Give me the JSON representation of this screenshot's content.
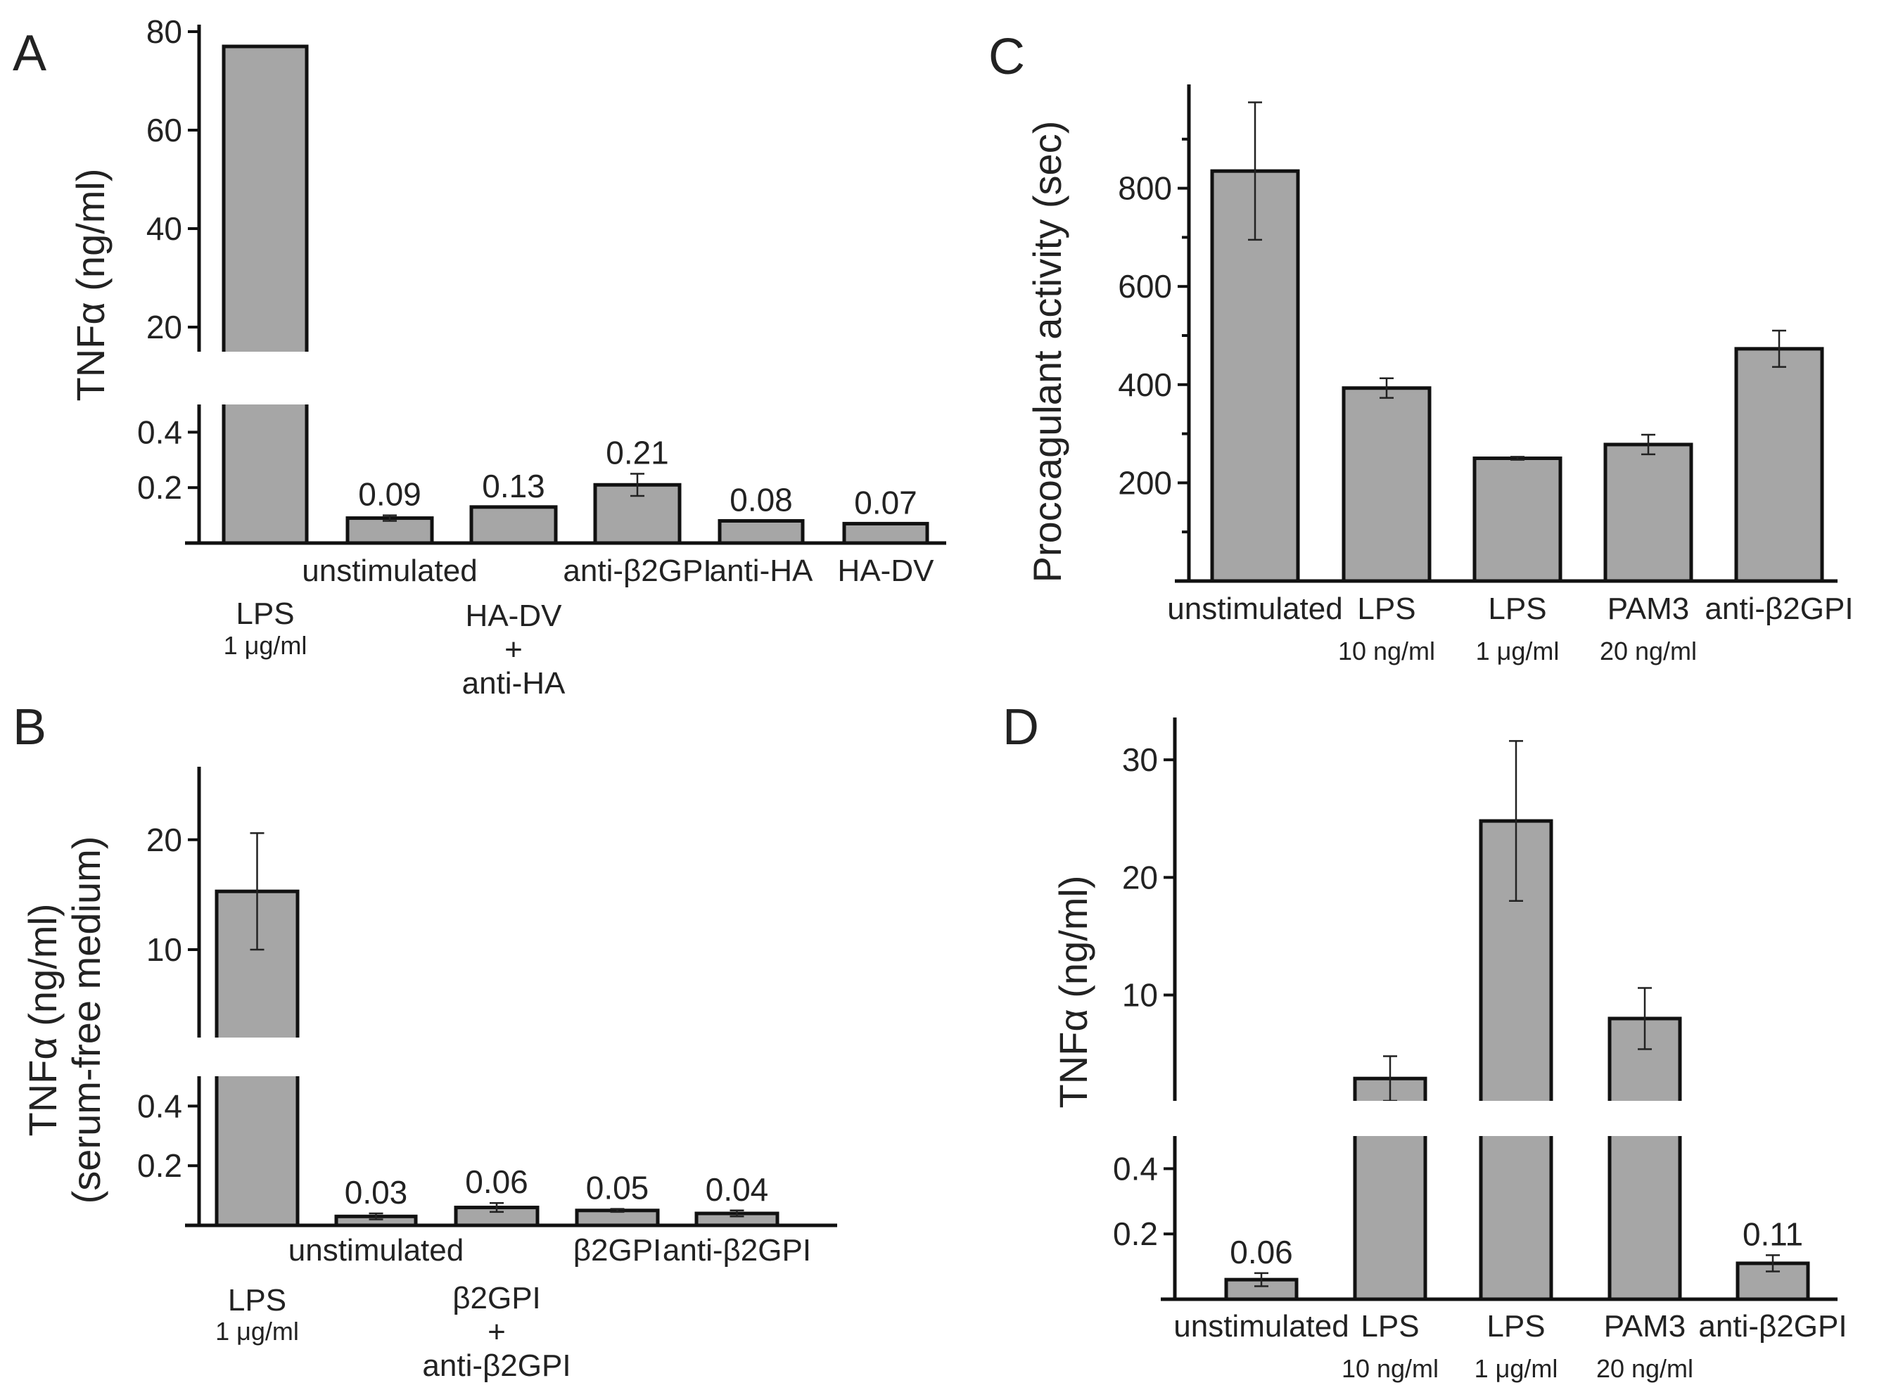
{
  "figure": {
    "panels": [
      {
        "id": "A",
        "label": "A",
        "ylabel": [
          "TNFα (ng/ml)"
        ]
      },
      {
        "id": "B",
        "label": "B",
        "ylabel": [
          "TNFα (ng/ml)",
          "(serum-free medium)"
        ]
      },
      {
        "id": "C",
        "label": "C",
        "ylabel": [
          "Procoagulant activity (sec)"
        ]
      },
      {
        "id": "D",
        "label": "D",
        "ylabel": [
          "TNFα (ng/ml)"
        ]
      }
    ]
  },
  "chart_data": [
    {
      "panel": "A",
      "type": "bar",
      "ylabel": "TNFα (ng/ml)",
      "axis_break": true,
      "upper_ticks": [
        "20",
        "40",
        "60",
        "80"
      ],
      "lower_ticks": [
        "0.2",
        "0.4"
      ],
      "ylim_lower": [
        0,
        0.5
      ],
      "ylim_upper": [
        15,
        80
      ],
      "categories": [
        {
          "name": "LPS",
          "sub": "1 μg/ml",
          "value": 77,
          "err": null,
          "label": ""
        },
        {
          "name": "unstimulated",
          "sub": "",
          "value": 0.09,
          "err": 0.01,
          "label": "0.09"
        },
        {
          "name": "HA-DV + anti-HA",
          "lines": [
            "HA-DV",
            "+",
            "anti-HA"
          ],
          "value": 0.13,
          "err": null,
          "label": "0.13"
        },
        {
          "name": "anti-β2GPI",
          "sub": "",
          "value": 0.21,
          "err": 0.04,
          "label": "0.21"
        },
        {
          "name": "anti-HA",
          "sub": "",
          "value": 0.08,
          "err": null,
          "label": "0.08"
        },
        {
          "name": "HA-DV",
          "sub": "",
          "value": 0.07,
          "err": null,
          "label": "0.07"
        }
      ]
    },
    {
      "panel": "B",
      "type": "bar",
      "ylabel": "TNFα (ng/ml) (serum-free medium)",
      "axis_break": true,
      "upper_ticks": [
        "10",
        "20"
      ],
      "lower_ticks": [
        "0.2",
        "0.4"
      ],
      "ylim_lower": [
        0,
        0.5
      ],
      "ylim_upper": [
        2,
        26
      ],
      "categories": [
        {
          "name": "LPS",
          "sub": "1 μg/ml",
          "value": 15.3,
          "err": 5.3,
          "label": ""
        },
        {
          "name": "unstimulated",
          "sub": "",
          "value": 0.03,
          "err": 0.01,
          "label": "0.03"
        },
        {
          "name": "β2GPI + anti-β2GPI",
          "lines": [
            "β2GPI",
            "+",
            "anti-β2GPI"
          ],
          "value": 0.06,
          "err": 0.015,
          "label": "0.06"
        },
        {
          "name": "β2GPI",
          "sub": "",
          "value": 0.05,
          "err": 0.005,
          "label": "0.05"
        },
        {
          "name": "anti-β2GPI",
          "sub": "",
          "value": 0.04,
          "err": 0.01,
          "label": "0.04"
        }
      ]
    },
    {
      "panel": "C",
      "type": "bar",
      "ylabel": "Procoagulant activity (sec)",
      "axis_break": false,
      "ticks": [
        "200",
        "400",
        "600",
        "800"
      ],
      "ylim": [
        0,
        1000
      ],
      "categories": [
        {
          "name": "unstimulated",
          "sub": "",
          "value": 835,
          "err": 140
        },
        {
          "name": "LPS",
          "sub": "10 ng/ml",
          "value": 393,
          "err": 20
        },
        {
          "name": "LPS",
          "sub": "1 μg/ml",
          "value": 250,
          "err": 3
        },
        {
          "name": "PAM3",
          "sub": "20 ng/ml",
          "value": 278,
          "err": 20
        },
        {
          "name": "anti-β2GPI",
          "sub": "",
          "value": 473,
          "err": 37
        }
      ]
    },
    {
      "panel": "D",
      "type": "bar",
      "ylabel": "TNFα (ng/ml)",
      "axis_break": true,
      "upper_ticks": [
        "10",
        "20",
        "30"
      ],
      "lower_ticks": [
        "0.2",
        "0.4"
      ],
      "ylim_lower": [
        0,
        0.5
      ],
      "ylim_upper": [
        1,
        33
      ],
      "categories": [
        {
          "name": "unstimulated",
          "sub": "",
          "value": 0.06,
          "err": 0.02,
          "label": "0.06"
        },
        {
          "name": "LPS",
          "sub": "10 ng/ml",
          "value": 2.9,
          "err": 1.9,
          "label": ""
        },
        {
          "name": "LPS",
          "sub": "1 μg/ml",
          "value": 24.8,
          "err": 6.8,
          "label": ""
        },
        {
          "name": "PAM3",
          "sub": "20 ng/ml",
          "value": 8,
          "err": 2.6,
          "label": ""
        },
        {
          "name": "anti-β2GPI",
          "sub": "",
          "value": 0.11,
          "err": 0.025,
          "label": "0.11"
        }
      ]
    }
  ]
}
